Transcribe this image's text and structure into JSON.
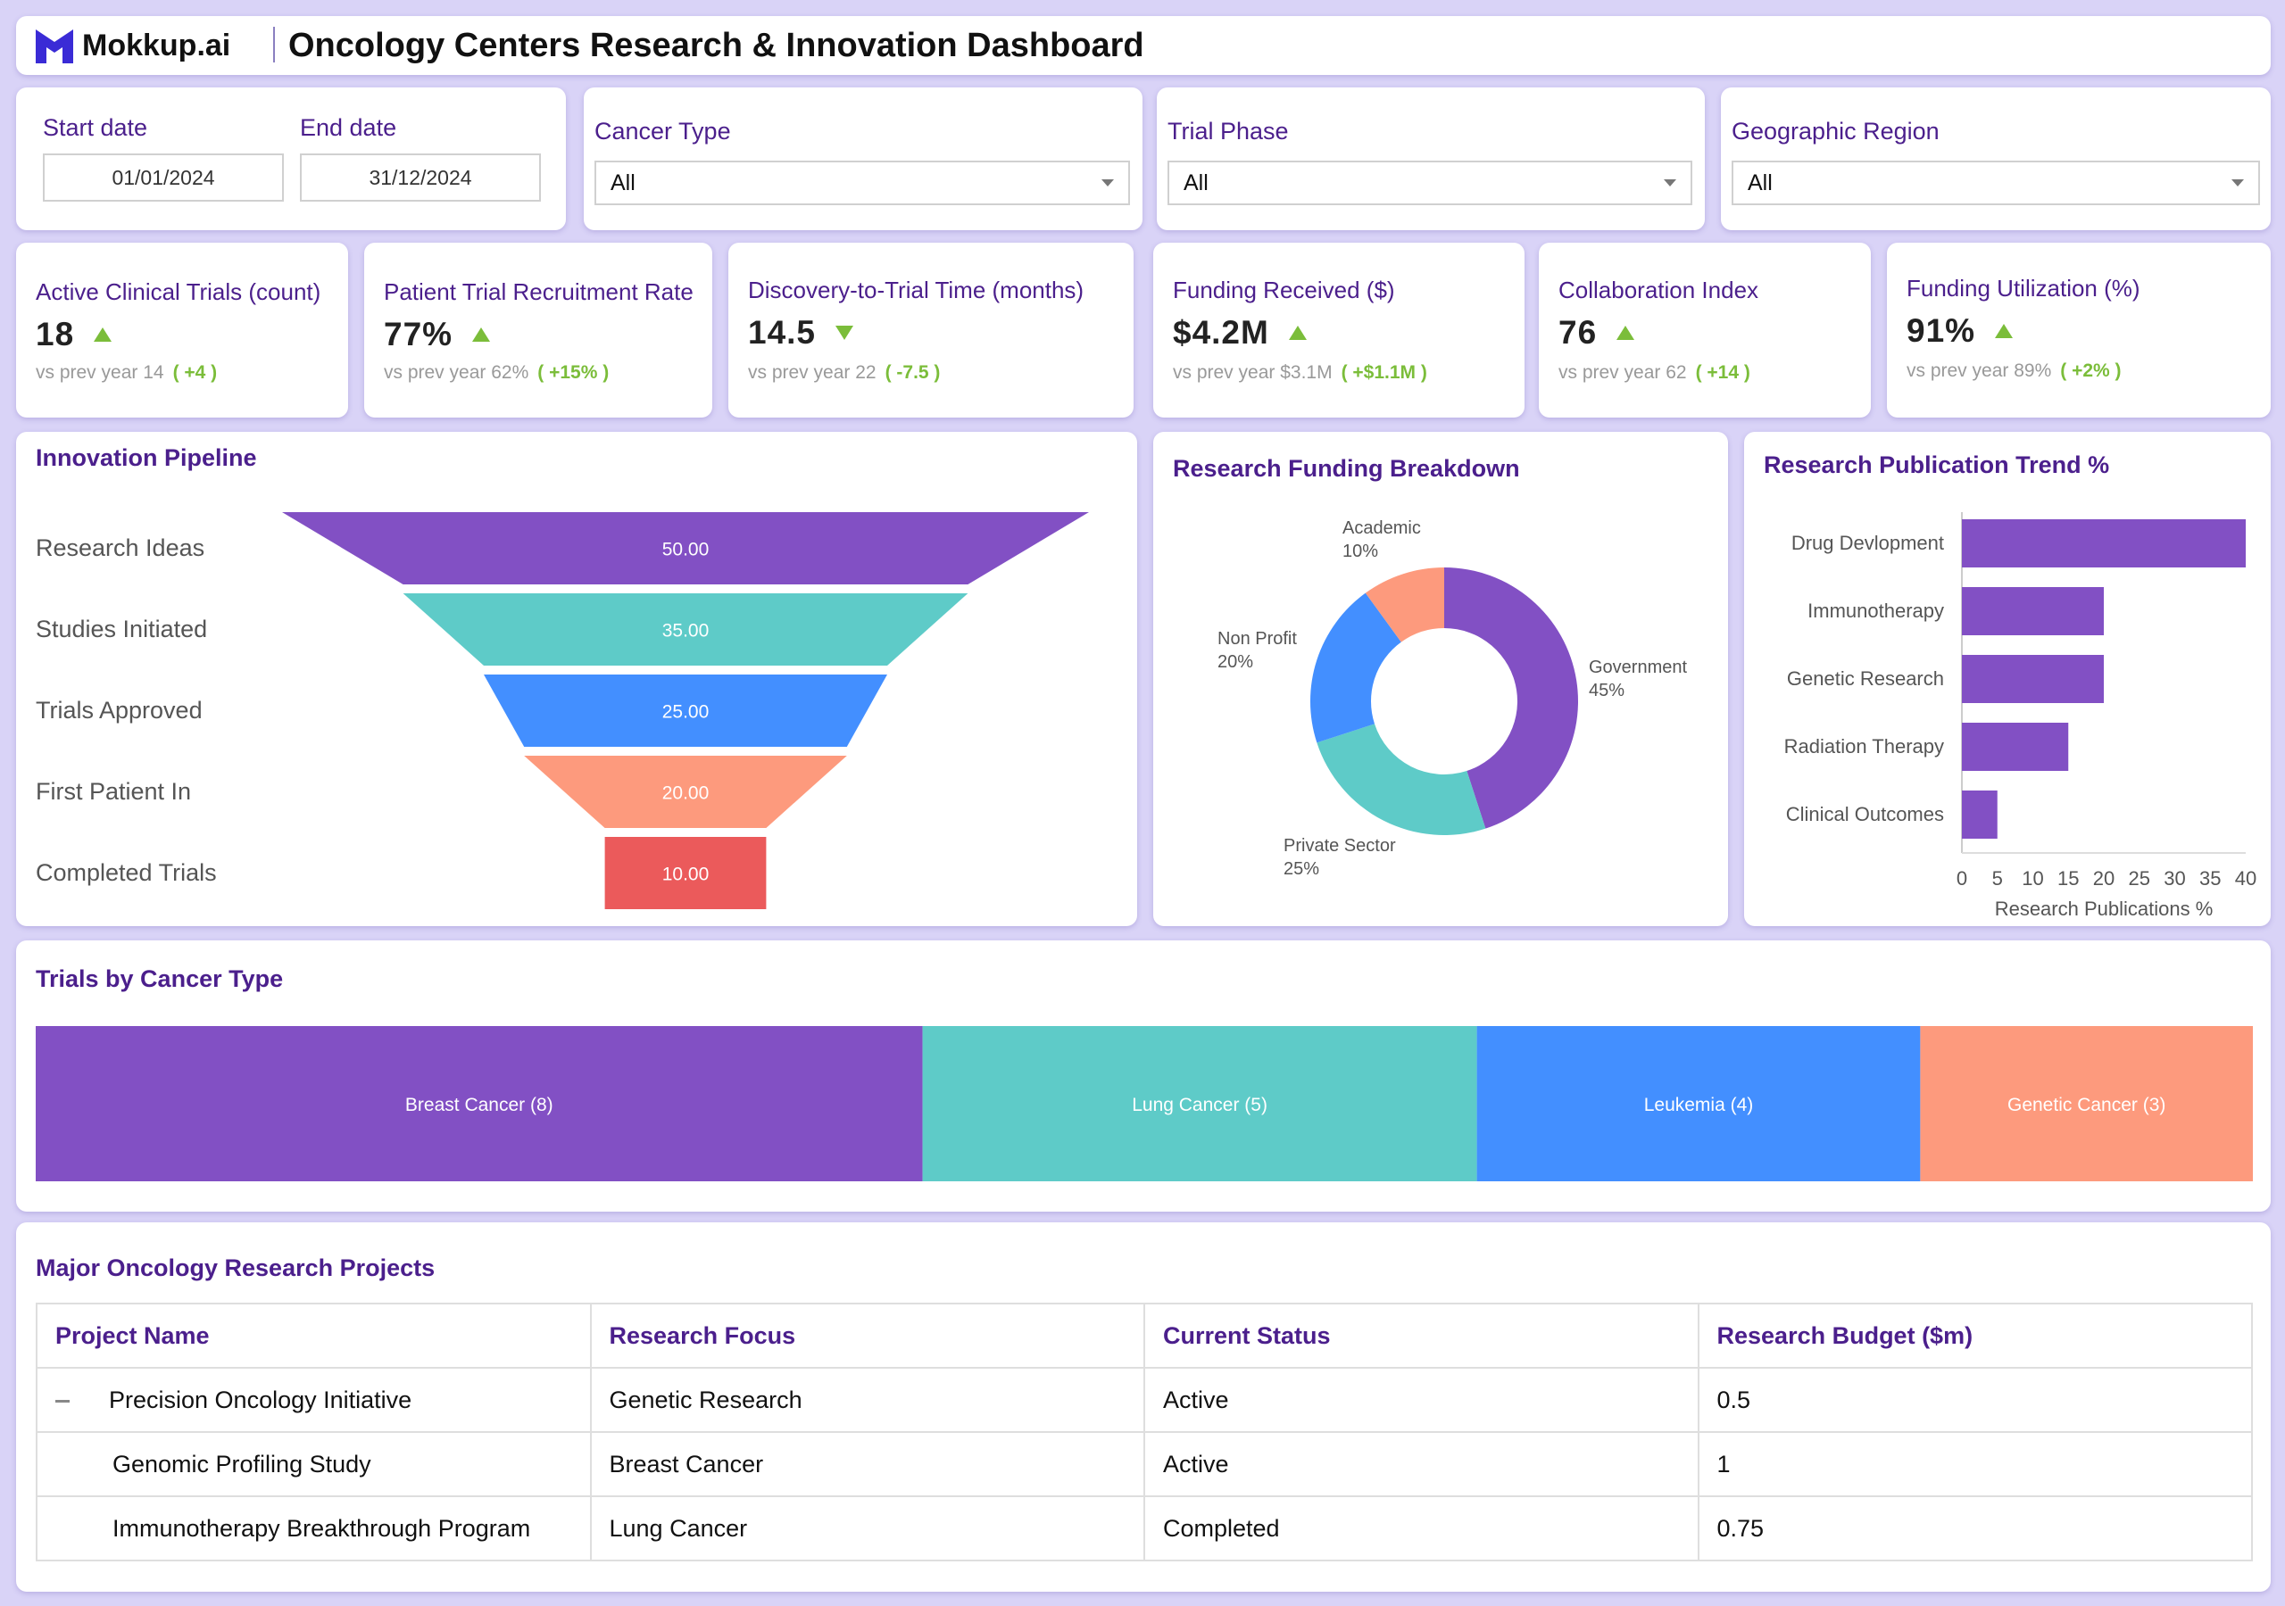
{
  "header": {
    "logo_text": "Mokkup.ai",
    "title": "Oncology Centers Research & Innovation Dashboard"
  },
  "filters": {
    "start_label": "Start date",
    "start_value": "01/01/2024",
    "end_label": "End date",
    "end_value": "31/12/2024",
    "cancer_type_label": "Cancer Type",
    "cancer_type_value": "All",
    "trial_phase_label": "Trial Phase",
    "trial_phase_value": "All",
    "region_label": "Geographic Region",
    "region_value": "All"
  },
  "kpis": [
    {
      "title": "Active Clinical Trials (count)",
      "value": "18",
      "trend": "up",
      "prev_label": "vs prev year",
      "prev": "14",
      "delta": "( +4 )"
    },
    {
      "title": "Patient Trial Recruitment Rate",
      "value": "77%",
      "trend": "up",
      "prev_label": "vs prev year",
      "prev": "62%",
      "delta": "( +15% )"
    },
    {
      "title": "Discovery-to-Trial Time (months)",
      "value": "14.5",
      "trend": "down",
      "prev_label": "vs prev year",
      "prev": "22",
      "delta": "( -7.5 )"
    },
    {
      "title": "Funding Received ($)",
      "value": "$4.2M",
      "trend": "up",
      "prev_label": "vs prev year",
      "prev": "$3.1M",
      "delta": "( +$1.1M )"
    },
    {
      "title": "Collaboration Index",
      "value": "76",
      "trend": "up",
      "prev_label": "vs prev year",
      "prev": "62",
      "delta": "( +14 )"
    },
    {
      "title": "Funding Utilization (%)",
      "value": "91%",
      "trend": "up",
      "prev_label": "vs prev year",
      "prev": "89%",
      "delta": "( +2% )"
    }
  ],
  "pipeline": {
    "title": "Innovation Pipeline"
  },
  "funding": {
    "title": "Research Funding Breakdown"
  },
  "publications": {
    "title": "Research Publication Trend %"
  },
  "trials_by_type": {
    "title": "Trials by Cancer Type"
  },
  "projects": {
    "title": "Major Oncology Research Projects",
    "columns": [
      "Project Name",
      "Research Focus",
      "Current Status",
      "Research Budget ($m)"
    ],
    "rows": [
      [
        "Precision Oncology Initiative",
        "Genetic Research",
        "Active",
        "0.5"
      ],
      [
        "Genomic Profiling Study",
        "Breast Cancer",
        "Active",
        "1"
      ],
      [
        "Immunotherapy Breakthrough Program",
        "Lung Cancer",
        "Completed",
        "0.75"
      ]
    ]
  },
  "chart_data": [
    {
      "type": "bar",
      "subtype": "funnel",
      "categories": [
        "Research Ideas",
        "Studies Initiated",
        "Trials Approved",
        "First Patient In",
        "Completed Trials"
      ],
      "values": [
        50,
        35,
        25,
        20,
        10
      ],
      "labels": [
        "50.00",
        "35.00",
        "25.00",
        "20.00",
        "10.00"
      ],
      "colors": [
        "#8250c4",
        "#5ecbc8",
        "#438fff",
        "#fd9a7d",
        "#eb5a5b"
      ]
    },
    {
      "type": "pie",
      "subtype": "donut",
      "categories": [
        "Government",
        "Private Sector",
        "Non Profit",
        "Academic"
      ],
      "values": [
        45,
        25,
        20,
        10
      ],
      "labels": [
        "45%",
        "25%",
        "20%",
        "10%"
      ],
      "colors": [
        "#8250c4",
        "#5ecbc8",
        "#438fff",
        "#fd9a7d"
      ]
    },
    {
      "type": "bar",
      "orientation": "horizontal",
      "categories": [
        "Drug Devlopment",
        "Immunotherapy",
        "Genetic Research",
        "Radiation Therapy",
        "Clinical Outcomes"
      ],
      "values": [
        40,
        20,
        20,
        15,
        5
      ],
      "xlabel": "Research Publications %",
      "xlim": [
        0,
        40
      ],
      "xticks": [
        "0",
        "5",
        "10",
        "15",
        "20",
        "25",
        "30",
        "35",
        "40"
      ],
      "color": "#8250c4"
    },
    {
      "type": "bar",
      "subtype": "treemap",
      "categories": [
        "Breast Cancer (8)",
        "Lung Cancer (5)",
        "Leukemia (4)",
        "Genetic Cancer (3)"
      ],
      "values": [
        8,
        5,
        4,
        3
      ],
      "colors": [
        "#8250c4",
        "#5ecbc8",
        "#438fff",
        "#fd9a7d"
      ]
    }
  ]
}
